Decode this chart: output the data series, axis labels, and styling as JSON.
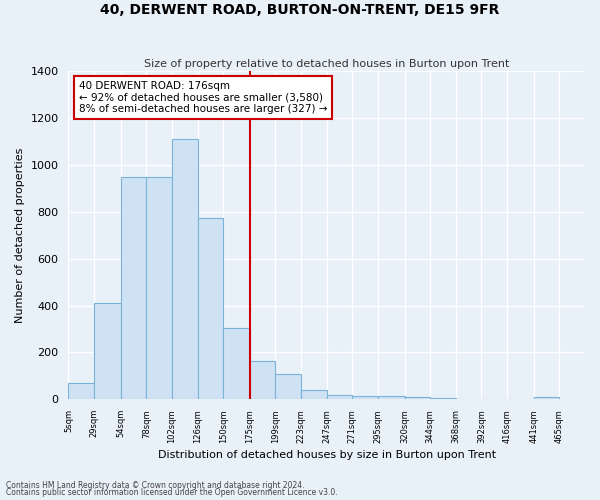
{
  "title": "40, DERWENT ROAD, BURTON-ON-TRENT, DE15 9FR",
  "subtitle": "Size of property relative to detached houses in Burton upon Trent",
  "xlabel": "Distribution of detached houses by size in Burton upon Trent",
  "ylabel": "Number of detached properties",
  "footer1": "Contains HM Land Registry data © Crown copyright and database right 2024.",
  "footer2": "Contains public sector information licensed under the Open Government Licence v3.0.",
  "annotation_title": "40 DERWENT ROAD: 176sqm",
  "annotation_line1": "← 92% of detached houses are smaller (3,580)",
  "annotation_line2": "8% of semi-detached houses are larger (327) →",
  "property_value": 176,
  "bin_edges": [
    5,
    29,
    54,
    78,
    102,
    126,
    150,
    175,
    199,
    223,
    247,
    271,
    295,
    320,
    344,
    368,
    392,
    416,
    441,
    465,
    489
  ],
  "bar_heights": [
    70,
    410,
    950,
    950,
    1110,
    775,
    305,
    165,
    110,
    40,
    20,
    15,
    15,
    10,
    5,
    0,
    0,
    0,
    10,
    0
  ],
  "bar_color": "#cfe2f3",
  "bar_edge_color": "#7ab3d8",
  "vline_color": "#cc0000",
  "vline_x": 175,
  "annotation_box_color": "#ffffff",
  "annotation_box_edge": "#cc0000",
  "background_color": "#e8f0f8",
  "grid_color": "#ffffff",
  "ylim": [
    0,
    1400
  ],
  "yticks": [
    0,
    200,
    400,
    600,
    800,
    1000,
    1200,
    1400
  ],
  "xlim": [
    5,
    489
  ]
}
